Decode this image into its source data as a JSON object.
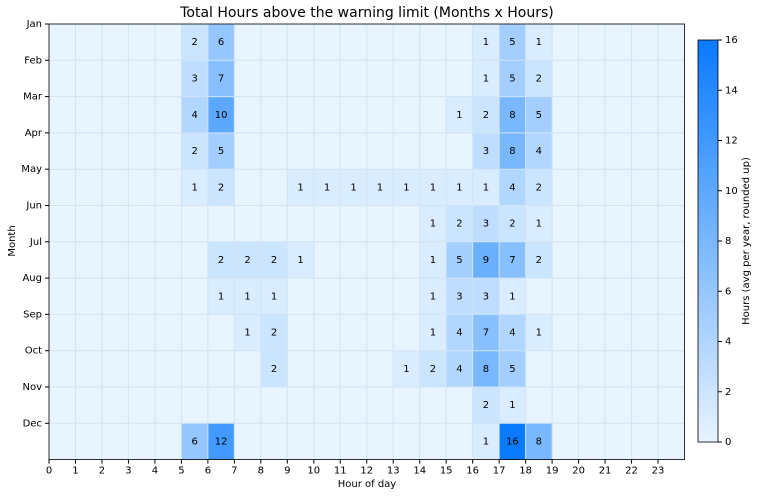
{
  "chart_data": {
    "type": "heatmap",
    "title": "Total Hours above the warning limit (Months x Hours)",
    "x_label": "Hour of day",
    "y_label": "Month",
    "colorbar_label": "Hours (avg per year, rounded up)",
    "categories": [
      "Jan",
      "Feb",
      "Mar",
      "Apr",
      "May",
      "Jun",
      "Jul",
      "Aug",
      "Sep",
      "Oct",
      "Nov",
      "Dec"
    ],
    "xlim": [
      0,
      24
    ],
    "xticks": [
      0,
      1,
      2,
      3,
      4,
      5,
      6,
      7,
      8,
      9,
      10,
      11,
      12,
      13,
      14,
      15,
      16,
      17,
      18,
      19,
      20,
      21,
      22,
      23
    ],
    "clim": [
      0,
      16
    ],
    "cticks": [
      0,
      2,
      4,
      6,
      8,
      10,
      12,
      14,
      16
    ],
    "cmap": [
      "#e8f4ff",
      "#0a7aff"
    ],
    "grid": true,
    "values": [
      [
        0,
        0,
        0,
        0,
        0,
        2,
        6,
        0,
        0,
        0,
        0,
        0,
        0,
        0,
        0,
        0,
        1,
        5,
        1,
        0,
        0,
        0,
        0,
        0
      ],
      [
        0,
        0,
        0,
        0,
        0,
        3,
        7,
        0,
        0,
        0,
        0,
        0,
        0,
        0,
        0,
        0,
        1,
        5,
        2,
        0,
        0,
        0,
        0,
        0
      ],
      [
        0,
        0,
        0,
        0,
        0,
        4,
        10,
        0,
        0,
        0,
        0,
        0,
        0,
        0,
        0,
        1,
        2,
        8,
        5,
        0,
        0,
        0,
        0,
        0
      ],
      [
        0,
        0,
        0,
        0,
        0,
        2,
        5,
        0,
        0,
        0,
        0,
        0,
        0,
        0,
        0,
        0,
        3,
        8,
        4,
        0,
        0,
        0,
        0,
        0
      ],
      [
        0,
        0,
        0,
        0,
        0,
        1,
        2,
        0,
        0,
        1,
        1,
        1,
        1,
        1,
        1,
        1,
        1,
        4,
        2,
        0,
        0,
        0,
        0,
        0
      ],
      [
        0,
        0,
        0,
        0,
        0,
        0,
        0,
        0,
        0,
        0,
        0,
        0,
        0,
        0,
        1,
        2,
        3,
        2,
        1,
        0,
        0,
        0,
        0,
        0
      ],
      [
        0,
        0,
        0,
        0,
        0,
        0,
        2,
        2,
        2,
        1,
        0,
        0,
        0,
        0,
        1,
        5,
        9,
        7,
        2,
        0,
        0,
        0,
        0,
        0
      ],
      [
        0,
        0,
        0,
        0,
        0,
        0,
        1,
        1,
        1,
        0,
        0,
        0,
        0,
        0,
        1,
        3,
        3,
        1,
        0,
        0,
        0,
        0,
        0,
        0
      ],
      [
        0,
        0,
        0,
        0,
        0,
        0,
        0,
        1,
        2,
        0,
        0,
        0,
        0,
        0,
        1,
        4,
        7,
        4,
        1,
        0,
        0,
        0,
        0,
        0
      ],
      [
        0,
        0,
        0,
        0,
        0,
        0,
        0,
        0,
        2,
        0,
        0,
        0,
        0,
        1,
        2,
        4,
        8,
        5,
        0,
        0,
        0,
        0,
        0,
        0
      ],
      [
        0,
        0,
        0,
        0,
        0,
        0,
        0,
        0,
        0,
        0,
        0,
        0,
        0,
        0,
        0,
        0,
        2,
        1,
        0,
        0,
        0,
        0,
        0,
        0
      ],
      [
        0,
        0,
        0,
        0,
        0,
        6,
        12,
        0,
        0,
        0,
        0,
        0,
        0,
        0,
        0,
        0,
        1,
        16,
        8,
        0,
        0,
        0,
        0,
        0
      ]
    ]
  }
}
